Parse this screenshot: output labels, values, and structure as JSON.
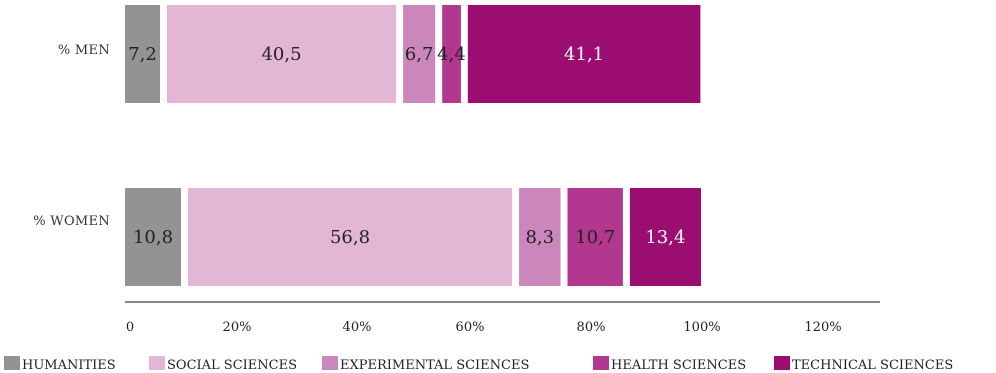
{
  "chart_data": {
    "type": "bar",
    "orientation": "horizontal",
    "stacked": true,
    "categories": [
      "% MEN",
      "% WOMEN"
    ],
    "series": [
      {
        "name": "HUMANITIES",
        "values": [
          7.2,
          10.8
        ],
        "labels": [
          "7,2",
          "10,8"
        ],
        "color": "#939295",
        "label_color": "#222222"
      },
      {
        "name": "SOCIAL SCIENCES",
        "values": [
          40.5,
          56.8
        ],
        "labels": [
          "40,5",
          "56,8"
        ],
        "color": "#e3b6d6",
        "label_color": "#222222"
      },
      {
        "name": "EXPERIMENTAL SCIENCES",
        "values": [
          6.7,
          8.3
        ],
        "labels": [
          "6,7",
          "8,3"
        ],
        "color": "#cb86bb",
        "label_color": "#222222"
      },
      {
        "name": "HEALTH SCIENCES",
        "values": [
          4.4,
          10.7
        ],
        "labels": [
          "4,4",
          "10,7"
        ],
        "color": "#b1378f",
        "label_color": "#222222"
      },
      {
        "name": "TECHNICAL SCIENCES",
        "values": [
          41.1,
          13.4
        ],
        "labels": [
          "41,1",
          "13,4"
        ],
        "color": "#9c0d72",
        "label_color": "#ffffff"
      }
    ],
    "xlim": [
      0,
      120
    ],
    "xticks": [
      "0",
      "20%",
      "40%",
      "60%",
      "80%",
      "100%",
      "120%"
    ],
    "legend_position": "bottom",
    "grid": false,
    "axis_color": "#888888"
  }
}
